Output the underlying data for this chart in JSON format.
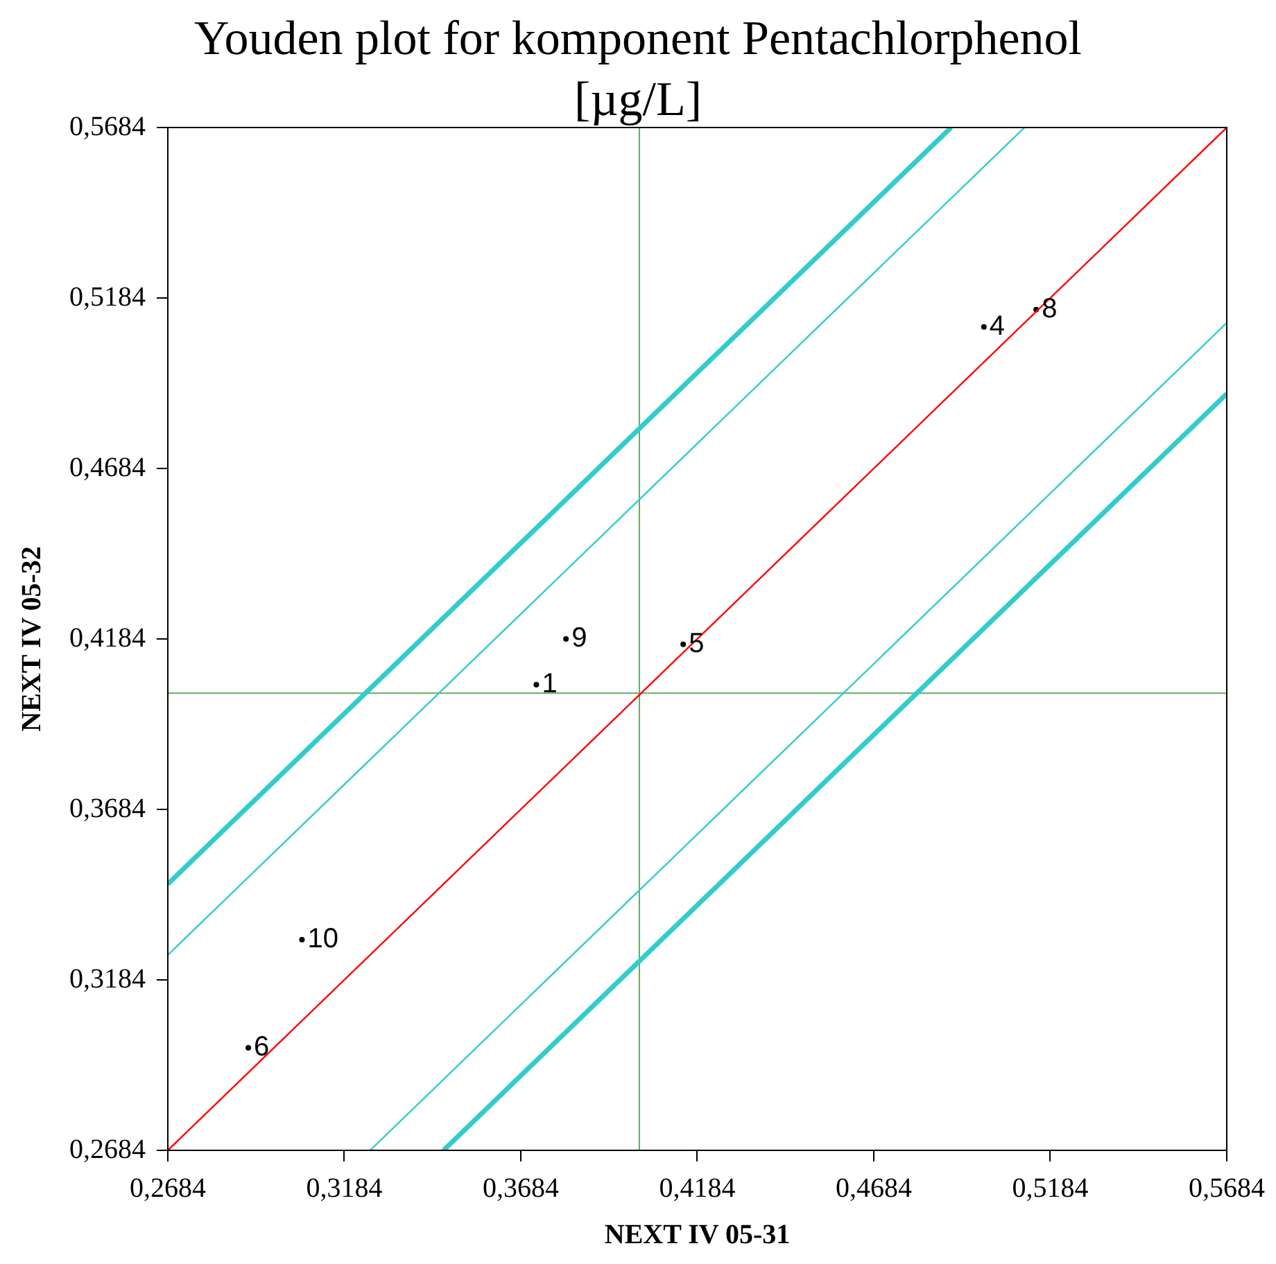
{
  "chart_data": {
    "type": "scatter",
    "title": "Youden plot for komponent Pentachlorphenol [µg/L]",
    "xlabel": "NEXT IV 05-31",
    "ylabel": "NEXT IV 05-32",
    "xlim": [
      0.2684,
      0.5684
    ],
    "ylim": [
      0.2684,
      0.5684
    ],
    "xticks": [
      {
        "value": 0.2684,
        "label": "0,2684"
      },
      {
        "value": 0.3184,
        "label": "0,3184"
      },
      {
        "value": 0.3684,
        "label": "0,3684"
      },
      {
        "value": 0.4184,
        "label": "0,4184"
      },
      {
        "value": 0.4684,
        "label": "0,4684"
      },
      {
        "value": 0.5184,
        "label": "0,5184"
      },
      {
        "value": 0.5684,
        "label": "0,5684"
      }
    ],
    "yticks": [
      {
        "value": 0.2684,
        "label": "0,2684"
      },
      {
        "value": 0.3184,
        "label": "0,3184"
      },
      {
        "value": 0.3684,
        "label": "0,3684"
      },
      {
        "value": 0.4184,
        "label": "0,4184"
      },
      {
        "value": 0.4684,
        "label": "0,4684"
      },
      {
        "value": 0.5184,
        "label": "0,5184"
      },
      {
        "value": 0.5684,
        "label": "0,5684"
      }
    ],
    "grid": false,
    "legend": false,
    "annotations": [
      {
        "text": "1",
        "x": 0.3728,
        "y": 0.405
      },
      {
        "text": "9",
        "x": 0.3812,
        "y": 0.4184
      },
      {
        "text": "5",
        "x": 0.4144,
        "y": 0.4168
      },
      {
        "text": "4",
        "x": 0.4996,
        "y": 0.5099
      },
      {
        "text": "8",
        "x": 0.5144,
        "y": 0.515
      },
      {
        "text": "10",
        "x": 0.3064,
        "y": 0.3302
      },
      {
        "text": "6",
        "x": 0.2912,
        "y": 0.2985
      }
    ],
    "ref_lines": [
      {
        "axis": "x",
        "value": 0.402,
        "color": "#66aa66"
      },
      {
        "axis": "y",
        "value": 0.4025,
        "color": "#66aa66"
      }
    ],
    "series": [
      {
        "type": "line",
        "color": "#33cccc",
        "x": [
          0.2684,
          0.4903
        ],
        "values": [
          0.3465,
          0.5684
        ]
      },
      {
        "type": "line",
        "color": "#33cccc",
        "x": [
          0.2684,
          0.5111
        ],
        "values": [
          0.3257,
          0.5684
        ]
      },
      {
        "type": "line",
        "color": "#ff0000",
        "x": [
          0.2684,
          0.5684
        ],
        "values": [
          0.2684,
          0.5684
        ]
      },
      {
        "type": "line",
        "color": "#33cccc",
        "x": [
          0.3257,
          0.5684
        ],
        "values": [
          0.2684,
          0.5111
        ]
      },
      {
        "type": "line",
        "color": "#33cccc",
        "x": [
          0.3465,
          0.5684
        ],
        "values": [
          0.2684,
          0.4903
        ]
      },
      {
        "type": "scatter",
        "color": "#000000",
        "marker": "circle",
        "x": [
          0.3728,
          0.3812,
          0.4144,
          0.4996,
          0.5144,
          0.3064,
          0.2912
        ],
        "values": [
          0.405,
          0.4184,
          0.4168,
          0.5099,
          0.515,
          0.3302,
          0.2985
        ]
      }
    ]
  }
}
